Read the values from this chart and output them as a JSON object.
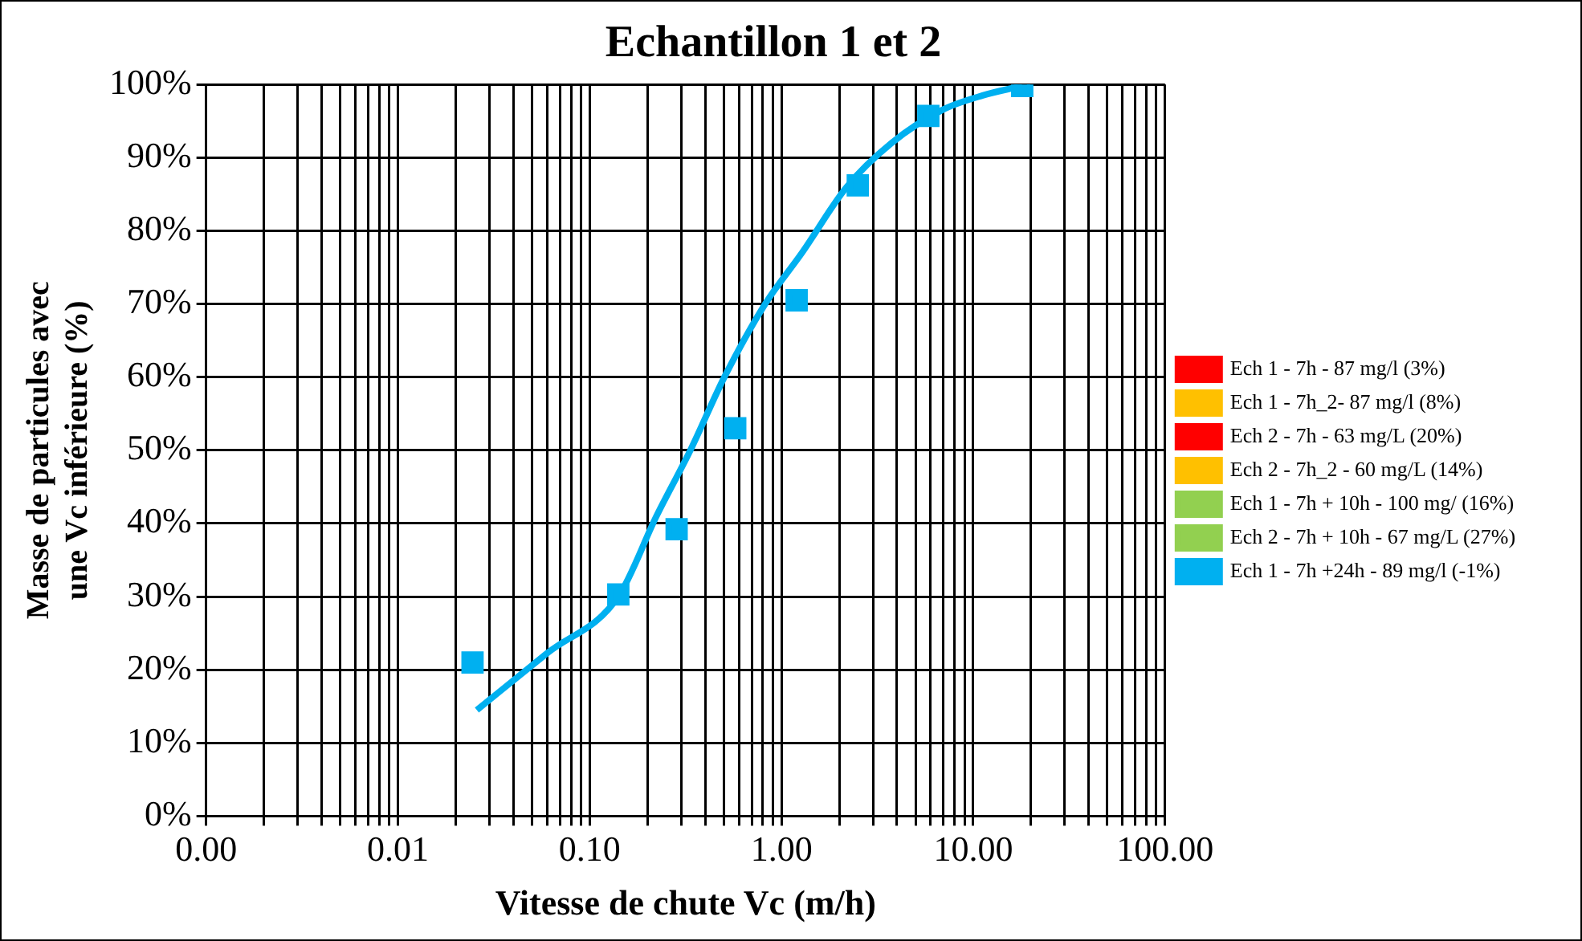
{
  "chart_data": {
    "type": "line",
    "title": "Echantillon 1 et 2",
    "xlabel": "Vitesse de chute Vc (m/h)",
    "ylabel": "Masse de particules avec une Vc inférieure (%)",
    "log": "x",
    "grid": true,
    "legend": "right",
    "xlim": [
      0.001,
      100
    ],
    "ylim": [
      0,
      1
    ],
    "xticks": [
      {
        "value": 0.001,
        "label": "0.00"
      },
      {
        "value": 0.002,
        "label": null
      },
      {
        "value": 0.003,
        "label": null
      },
      {
        "value": 0.004,
        "label": null
      },
      {
        "value": 0.005,
        "label": null
      },
      {
        "value": 0.006,
        "label": null
      },
      {
        "value": 0.007,
        "label": null
      },
      {
        "value": 0.008,
        "label": null
      },
      {
        "value": 0.009,
        "label": null
      },
      {
        "value": 0.01,
        "label": "0.01"
      },
      {
        "value": 0.02,
        "label": null
      },
      {
        "value": 0.03,
        "label": null
      },
      {
        "value": 0.04,
        "label": null
      },
      {
        "value": 0.05,
        "label": null
      },
      {
        "value": 0.06,
        "label": null
      },
      {
        "value": 0.07,
        "label": null
      },
      {
        "value": 0.08,
        "label": null
      },
      {
        "value": 0.09,
        "label": null
      },
      {
        "value": 0.1,
        "label": "0.10"
      },
      {
        "value": 0.2,
        "label": null
      },
      {
        "value": 0.3,
        "label": null
      },
      {
        "value": 0.4,
        "label": null
      },
      {
        "value": 0.5,
        "label": null
      },
      {
        "value": 0.6,
        "label": null
      },
      {
        "value": 0.7,
        "label": null
      },
      {
        "value": 0.8,
        "label": null
      },
      {
        "value": 0.9,
        "label": null
      },
      {
        "value": 1,
        "label": "1.00"
      },
      {
        "value": 2,
        "label": null
      },
      {
        "value": 3,
        "label": null
      },
      {
        "value": 4,
        "label": null
      },
      {
        "value": 5,
        "label": null
      },
      {
        "value": 6,
        "label": null
      },
      {
        "value": 7,
        "label": null
      },
      {
        "value": 8,
        "label": null
      },
      {
        "value": 9,
        "label": null
      },
      {
        "value": 10,
        "label": "10.00"
      },
      {
        "value": 20,
        "label": null
      },
      {
        "value": 30,
        "label": null
      },
      {
        "value": 40,
        "label": null
      },
      {
        "value": 50,
        "label": null
      },
      {
        "value": 60,
        "label": null
      },
      {
        "value": 70,
        "label": null
      },
      {
        "value": 80,
        "label": null
      },
      {
        "value": 90,
        "label": null
      },
      {
        "value": 100,
        "label": "100.00"
      }
    ],
    "yticks": [
      {
        "value": 0,
        "label": "0%"
      },
      {
        "value": 0.1,
        "label": "10%"
      },
      {
        "value": 0.2,
        "label": "20%"
      },
      {
        "value": 0.3,
        "label": "30%"
      },
      {
        "value": 0.4,
        "label": "40%"
      },
      {
        "value": 0.5,
        "label": "50%"
      },
      {
        "value": 0.6,
        "label": "60%"
      },
      {
        "value": 0.7,
        "label": "70%"
      },
      {
        "value": 0.8,
        "label": "80%"
      },
      {
        "value": 0.9,
        "label": "90%"
      },
      {
        "value": 1,
        "label": "100%"
      }
    ],
    "x": [
      0.0245,
      0.141,
      0.284,
      0.574,
      1.2,
      2.5,
      5.83,
      18.0
    ],
    "series": [
      {
        "name": "Ech 1 - 7h - 87 mg/l (3%)",
        "color": "#ff0000",
        "marker": "square",
        "values": [
          null,
          null,
          null,
          null,
          null,
          null,
          null,
          null
        ]
      },
      {
        "name": "Ech 1 - 7h_2- 87 mg/l (8%)",
        "color": "#ffc000",
        "marker": "square",
        "values": [
          null,
          null,
          null,
          null,
          null,
          null,
          null,
          null
        ]
      },
      {
        "name": "Ech 2 - 7h - 63 mg/L (20%)",
        "color": "#ff0000",
        "marker": "none",
        "values": [
          null,
          null,
          null,
          null,
          null,
          null,
          null,
          null
        ]
      },
      {
        "name": "Ech 2 - 7h_2 - 60 mg/L (14%)",
        "color": "#ffc000",
        "marker": "none",
        "values": [
          null,
          null,
          null,
          null,
          null,
          null,
          null,
          null
        ]
      },
      {
        "name": "Ech 1 - 7h + 10h - 100 mg/ (16%)",
        "color": "#92d050",
        "marker": "square",
        "values": [
          null,
          null,
          null,
          null,
          null,
          null,
          null,
          null
        ]
      },
      {
        "name": "Ech 2 - 7h + 10h - 67 mg/L (27%)",
        "color": "#92d050",
        "marker": "none",
        "values": [
          null,
          null,
          null,
          null,
          null,
          null,
          null,
          null
        ]
      },
      {
        "name": "Ech 1 - 7h +24h - 89 mg/l (-1%)",
        "color": "#00b0f0",
        "type": "scatter",
        "marker": "square",
        "values": [
          0.21,
          0.303,
          0.392,
          0.53,
          0.705,
          0.862,
          0.957,
          0.998
        ]
      },
      {
        "color": "#00b0f0",
        "type": "line",
        "marker": "none",
        "x": [
          0.0258,
          0.0603,
          0.141,
          0.223,
          0.335,
          0.504,
          0.822,
          1.28,
          2.19,
          3.75,
          6.87,
          11.2,
          18.0
        ],
        "values": [
          0.145,
          0.223,
          0.3,
          0.41,
          0.5,
          0.6,
          0.7,
          0.77,
          0.86,
          0.92,
          0.965,
          0.985,
          0.998
        ]
      }
    ]
  }
}
